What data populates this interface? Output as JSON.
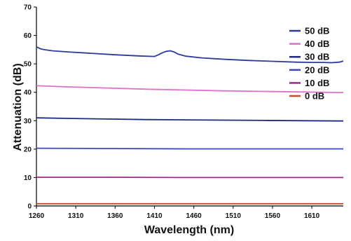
{
  "chart_data": {
    "type": "line",
    "xlabel": "Wavelength (nm)",
    "ylabel": "Attenuation (dB)",
    "xlim": [
      1260,
      1650
    ],
    "ylim": [
      0,
      70
    ],
    "xticks": [
      1260,
      1310,
      1360,
      1410,
      1460,
      1510,
      1560,
      1610
    ],
    "yticks": [
      0,
      10,
      20,
      30,
      40,
      50,
      60,
      70
    ],
    "grid": false,
    "legend_position": "top-right",
    "series": [
      {
        "name": "50 dB",
        "color": "#2e3a9a",
        "x": [
          1260,
          1265,
          1270,
          1280,
          1300,
          1330,
          1360,
          1390,
          1410,
          1415,
          1420,
          1425,
          1430,
          1435,
          1440,
          1450,
          1470,
          1500,
          1530,
          1560,
          1590,
          1610,
          1625,
          1635,
          1645,
          1650
        ],
        "y": [
          56.0,
          55.3,
          55.0,
          54.6,
          54.2,
          53.7,
          53.2,
          52.8,
          52.6,
          53.2,
          53.9,
          54.4,
          54.6,
          54.2,
          53.4,
          52.7,
          52.1,
          51.6,
          51.2,
          50.9,
          50.6,
          50.5,
          50.5,
          50.4,
          50.6,
          51.0
        ]
      },
      {
        "name": "40 dB",
        "color": "#e070c8",
        "x": [
          1260,
          1300,
          1350,
          1400,
          1450,
          1500,
          1550,
          1600,
          1650
        ],
        "y": [
          42.3,
          41.9,
          41.5,
          41.1,
          40.8,
          40.5,
          40.3,
          40.1,
          39.9
        ]
      },
      {
        "name": "30 dB",
        "color": "#1e2a80",
        "x": [
          1260,
          1300,
          1350,
          1400,
          1450,
          1500,
          1550,
          1600,
          1650
        ],
        "y": [
          31.0,
          30.8,
          30.6,
          30.4,
          30.3,
          30.2,
          30.1,
          30.0,
          29.9
        ]
      },
      {
        "name": "20 dB",
        "color": "#3a48c8",
        "x": [
          1260,
          1350,
          1450,
          1550,
          1650
        ],
        "y": [
          20.3,
          20.2,
          20.1,
          20.1,
          20.1
        ]
      },
      {
        "name": "10 dB",
        "color": "#9a2a8a",
        "x": [
          1260,
          1350,
          1450,
          1550,
          1650
        ],
        "y": [
          10.1,
          10.1,
          10.0,
          10.0,
          10.0
        ]
      },
      {
        "name": "0 dB",
        "color": "#c0502a",
        "x": [
          1260,
          1350,
          1450,
          1550,
          1650
        ],
        "y": [
          0.8,
          0.8,
          0.8,
          0.8,
          0.8
        ]
      }
    ]
  }
}
